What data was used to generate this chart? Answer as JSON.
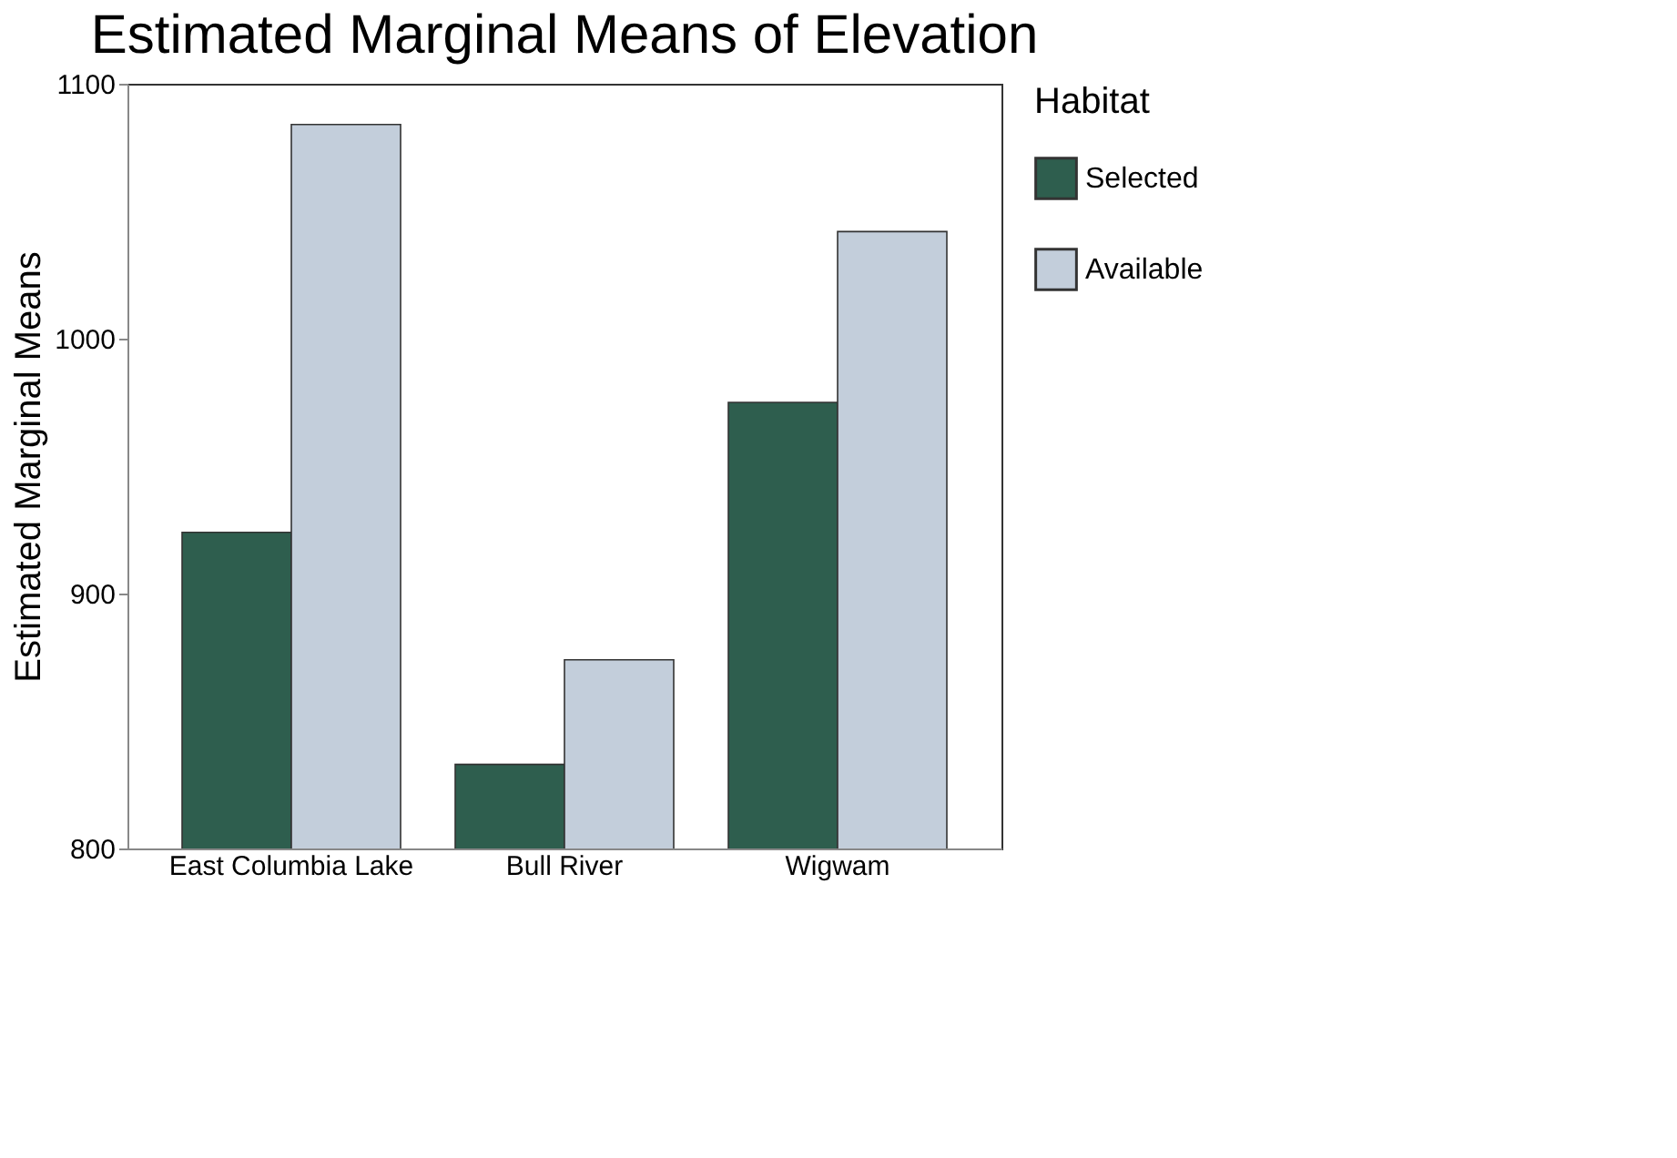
{
  "chart_data": {
    "type": "bar",
    "title": "Estimated Marginal Means of Elevation",
    "ylabel": "Estimated Marginal Means",
    "legend_title": "Habitat",
    "categories": [
      "East Columbia Lake",
      "Bull River",
      "Wigwam"
    ],
    "series": [
      {
        "name": "Selected",
        "color": "#2e5e4e",
        "values": [
          924,
          833,
          975
        ]
      },
      {
        "name": "Available",
        "color": "#c3cedb",
        "values": [
          1084,
          874,
          1042
        ]
      }
    ],
    "ylim": [
      800,
      1100
    ],
    "yticks": [
      800,
      900,
      1000,
      1100
    ],
    "grid": false,
    "legend": "right"
  }
}
